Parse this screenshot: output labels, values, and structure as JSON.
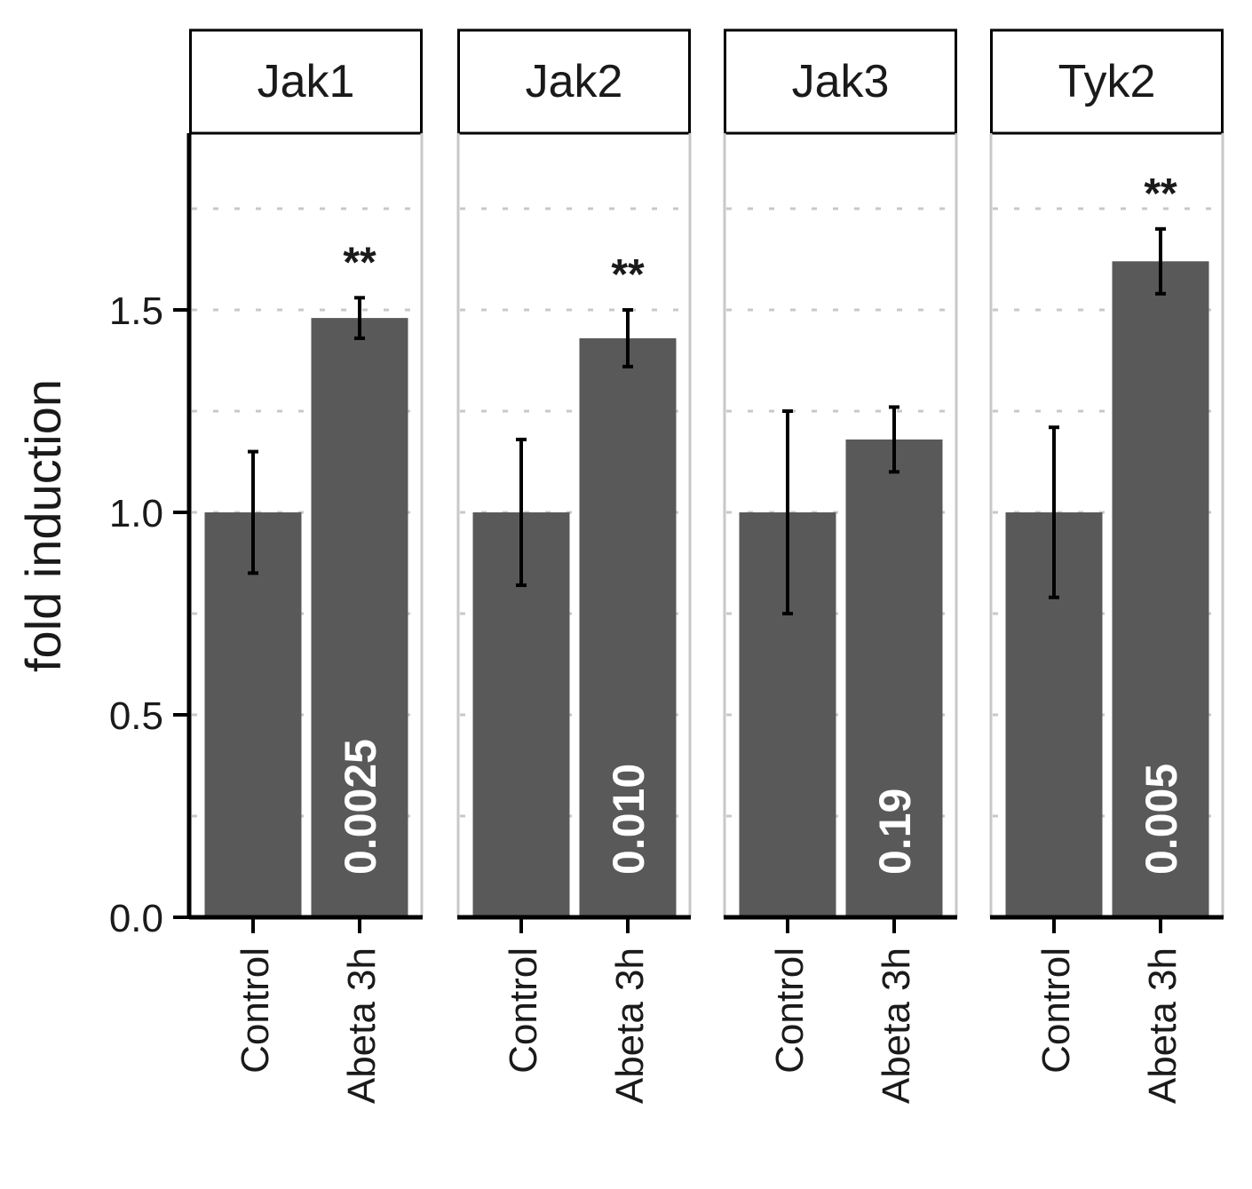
{
  "chart_data": {
    "type": "bar",
    "ylabel": "fold induction",
    "xlabel": "",
    "ylim": [
      0,
      1.93
    ],
    "yticks": [
      "0.0",
      "0.5",
      "1.0",
      "1.5"
    ],
    "categories": [
      "Control",
      "Abeta 3h"
    ],
    "bar_color": "#595959",
    "panels": [
      {
        "name": "Jak1",
        "values": [
          1.0,
          1.48
        ],
        "errors": [
          0.15,
          0.05
        ],
        "pvalue": "0.0025",
        "sig": "**"
      },
      {
        "name": "Jak2",
        "values": [
          1.0,
          1.43
        ],
        "errors": [
          0.18,
          0.07
        ],
        "pvalue": "0.010",
        "sig": "**"
      },
      {
        "name": "Jak3",
        "values": [
          1.0,
          1.18
        ],
        "errors": [
          0.25,
          0.08
        ],
        "pvalue": "0.19",
        "sig": ""
      },
      {
        "name": "Tyk2",
        "values": [
          1.0,
          1.62
        ],
        "errors": [
          0.21,
          0.08
        ],
        "pvalue": "0.005",
        "sig": "**"
      }
    ]
  }
}
